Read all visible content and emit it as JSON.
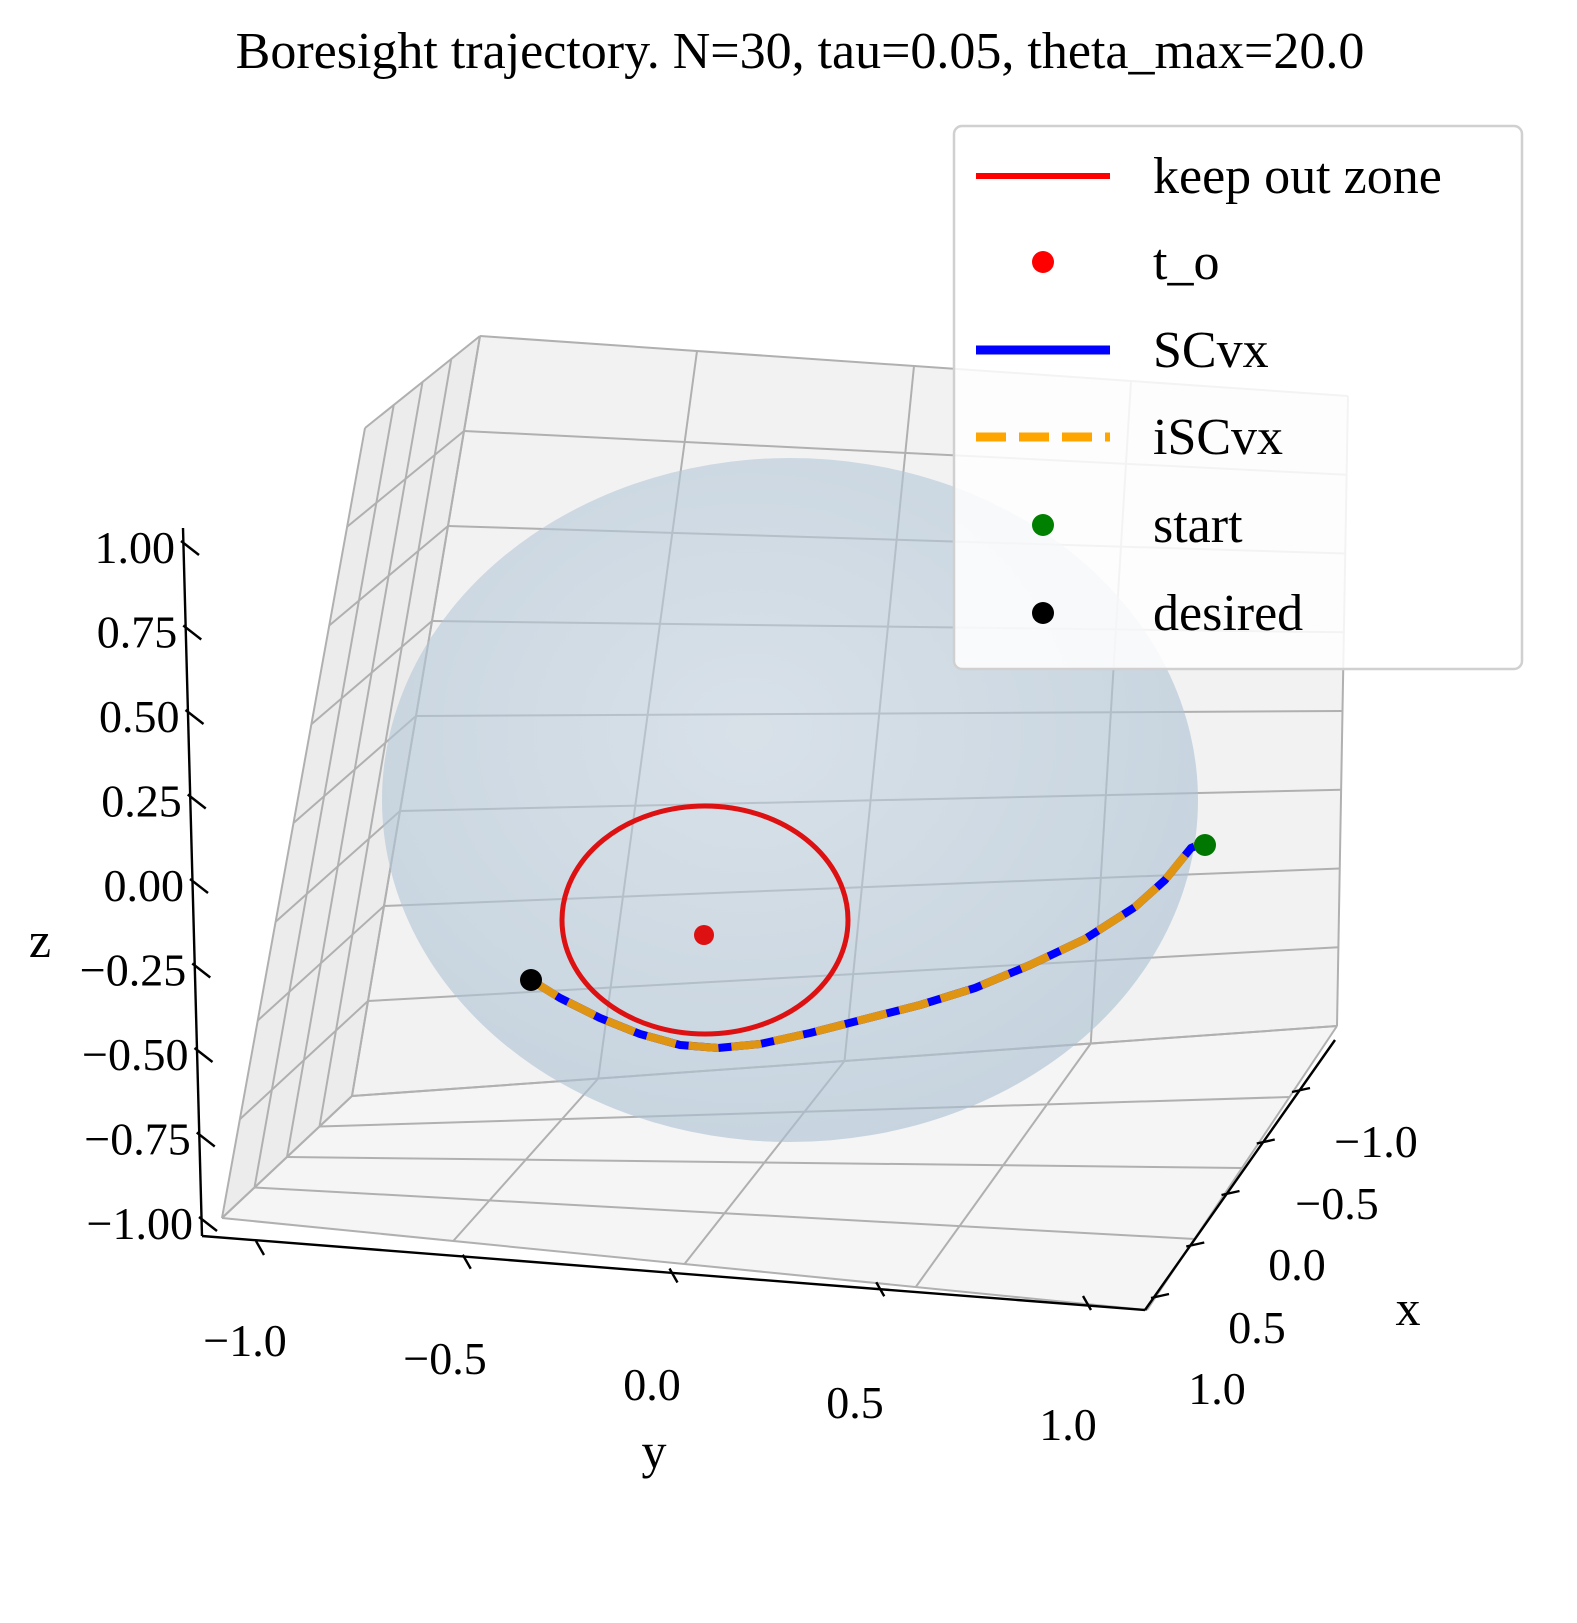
{
  "chart_data": {
    "type": "line3d",
    "title": "Boresight trajectory. N=30, tau=0.05, theta_max=20.0",
    "xlabel": "x",
    "ylabel": "y",
    "zlabel": "z",
    "xlim": [
      -1.0,
      1.0
    ],
    "ylim": [
      -1.0,
      1.0
    ],
    "zlim": [
      -1.0,
      1.0
    ],
    "x_ticks": [
      "−1.0",
      "−0.5",
      "0.0",
      "0.5",
      "1.0"
    ],
    "y_ticks": [
      "−1.0",
      "−0.5",
      "0.0",
      "0.5",
      "1.0"
    ],
    "z_ticks": [
      "1.00",
      "0.75",
      "0.50",
      "0.25",
      "0.00",
      "−0.25",
      "−0.50",
      "−0.75",
      "−1.00"
    ],
    "grid": true,
    "legend_position": "top-right",
    "legend": [
      {
        "label": "keep out zone",
        "style": "line",
        "color": "#ff0000"
      },
      {
        "label": "t_o",
        "style": "marker",
        "color": "#ff0000"
      },
      {
        "label": "SCvx",
        "style": "line",
        "color": "#0000ff"
      },
      {
        "label": "iSCvx",
        "style": "dashed",
        "color": "#ffa500"
      },
      {
        "label": "start",
        "style": "marker",
        "color": "#008000"
      },
      {
        "label": "desired",
        "style": "marker",
        "color": "#000000"
      }
    ],
    "sphere": {
      "radius": 1.0,
      "color": "#c3d3e1"
    },
    "keep_out_zone": {
      "center": [
        -0.85,
        0.05,
        0.0
      ],
      "half_angle_deg": 20.0,
      "color": "#dd1111"
    },
    "t_o": {
      "point": [
        -0.95,
        0.05,
        0.0
      ],
      "color": "#dd1111"
    },
    "start": {
      "point": [
        -0.3,
        0.94,
        0.1
      ],
      "color": "#007700"
    },
    "desired": {
      "point": [
        -0.5,
        -0.85,
        0.0
      ],
      "color": "#000000"
    },
    "trajectory_xyz": [
      [
        -0.5,
        -0.85,
        0.0
      ],
      [
        -0.6,
        -0.7,
        -0.08
      ],
      [
        -0.66,
        -0.53,
        -0.15
      ],
      [
        -0.71,
        -0.42,
        -0.2
      ],
      [
        -0.74,
        -0.3,
        -0.22
      ],
      [
        -0.74,
        -0.15,
        -0.22
      ],
      [
        -0.7,
        0.02,
        -0.21
      ],
      [
        -0.63,
        0.2,
        -0.17
      ],
      [
        -0.55,
        0.37,
        -0.12
      ],
      [
        -0.47,
        0.54,
        -0.07
      ],
      [
        -0.42,
        0.67,
        -0.02
      ],
      [
        -0.37,
        0.8,
        0.02
      ],
      [
        -0.34,
        0.88,
        0.06
      ],
      [
        -0.3,
        0.94,
        0.1
      ]
    ],
    "series": [
      {
        "name": "SCvx",
        "color": "#0000ff",
        "style": "solid"
      },
      {
        "name": "iSCvx",
        "color": "#f0a000",
        "style": "dashed"
      }
    ]
  }
}
